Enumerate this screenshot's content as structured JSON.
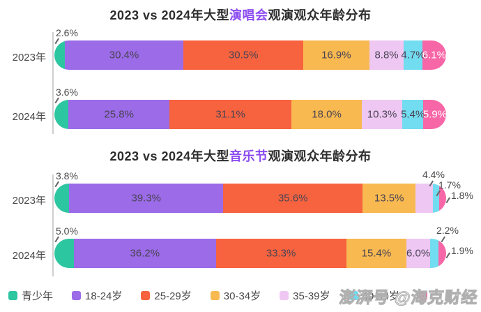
{
  "watermark": {
    "text": "澎湃号 @海克财经"
  },
  "colors": {
    "axis": "#cfcfcf",
    "title_text": "#2e2e2e",
    "title_highlight": "#8B4BF0",
    "green": "#2CC6A0",
    "purple": "#9B6BE8",
    "red": "#F7633F",
    "amber": "#F8B950",
    "lavender": "#EEC7F3",
    "cyan": "#72DCF0",
    "pink": "#F767A7"
  },
  "legend": {
    "items": [
      {
        "label": "青少年",
        "color": "#2CC6A0"
      },
      {
        "label": "18-24岁",
        "color": "#9B6BE8"
      },
      {
        "label": "25-29岁",
        "color": "#F7633F"
      },
      {
        "label": "30-34岁",
        "color": "#F8B950"
      },
      {
        "label": "35-39岁",
        "color": "#EEC7F3"
      },
      {
        "label": "40-44岁",
        "color": "#72DCF0"
      },
      {
        "label": "",
        "color": "#F767A7"
      }
    ]
  },
  "charts": [
    {
      "title": {
        "prefix": "2023 vs 2024年大型",
        "highlight": "演唱会",
        "suffix": "观演观众年龄分布"
      },
      "rows": [
        {
          "label": "2023年",
          "segments": [
            {
              "label": "2.6%",
              "value": 2.6,
              "color": "#2CC6A0",
              "placement": "above-start"
            },
            {
              "label": "30.4%",
              "value": 30.4,
              "color": "#9B6BE8",
              "placement": "inside"
            },
            {
              "label": "30.5%",
              "value": 30.5,
              "color": "#F7633F",
              "placement": "inside"
            },
            {
              "label": "16.9%",
              "value": 16.9,
              "color": "#F8B950",
              "placement": "inside"
            },
            {
              "label": "8.8%",
              "value": 8.8,
              "color": "#EEC7F3",
              "placement": "inside"
            },
            {
              "label": "4.7%",
              "value": 4.7,
              "color": "#72DCF0",
              "placement": "inside"
            },
            {
              "label": "6.1%",
              "value": 6.1,
              "color": "#F767A7",
              "placement": "inside",
              "label_color": "#ffffff"
            }
          ]
        },
        {
          "label": "2024年",
          "segments": [
            {
              "label": "3.6%",
              "value": 3.6,
              "color": "#2CC6A0",
              "placement": "above-start"
            },
            {
              "label": "25.8%",
              "value": 25.8,
              "color": "#9B6BE8",
              "placement": "inside"
            },
            {
              "label": "31.1%",
              "value": 31.1,
              "color": "#F7633F",
              "placement": "inside"
            },
            {
              "label": "18.0%",
              "value": 18.0,
              "color": "#F8B950",
              "placement": "inside"
            },
            {
              "label": "10.3%",
              "value": 10.3,
              "color": "#EEC7F3",
              "placement": "inside"
            },
            {
              "label": "5.4%",
              "value": 5.4,
              "color": "#72DCF0",
              "placement": "inside"
            },
            {
              "label": "5.9%",
              "value": 5.9,
              "color": "#F767A7",
              "placement": "inside",
              "label_color": "#ffffff"
            }
          ]
        }
      ]
    },
    {
      "title": {
        "prefix": "2023 vs 2024年大型",
        "highlight": "音乐节",
        "suffix": "观演观众年龄分布"
      },
      "rows": [
        {
          "label": "2023年",
          "segments": [
            {
              "label": "3.8%",
              "value": 3.8,
              "color": "#2CC6A0",
              "placement": "above-start"
            },
            {
              "label": "39.3%",
              "value": 39.3,
              "color": "#9B6BE8",
              "placement": "inside"
            },
            {
              "label": "35.6%",
              "value": 35.6,
              "color": "#F7633F",
              "placement": "inside"
            },
            {
              "label": "13.5%",
              "value": 13.5,
              "color": "#F8B950",
              "placement": "inside"
            },
            {
              "label": "4.4%",
              "value": 4.4,
              "color": "#EEC7F3",
              "placement": "co-top1"
            },
            {
              "label": "1.7%",
              "value": 1.7,
              "color": "#72DCF0",
              "placement": "co-mid"
            },
            {
              "label": "1.8%",
              "value": 1.8,
              "color": "#F767A7",
              "placement": "co-right"
            }
          ]
        },
        {
          "label": "2024年",
          "segments": [
            {
              "label": "5.0%",
              "value": 5.0,
              "color": "#2CC6A0",
              "placement": "above-start"
            },
            {
              "label": "36.2%",
              "value": 36.2,
              "color": "#9B6BE8",
              "placement": "inside"
            },
            {
              "label": "33.3%",
              "value": 33.3,
              "color": "#F7633F",
              "placement": "inside"
            },
            {
              "label": "15.4%",
              "value": 15.4,
              "color": "#F8B950",
              "placement": "inside"
            },
            {
              "label": "6.0%",
              "value": 6.0,
              "color": "#EEC7F3",
              "placement": "inside"
            },
            {
              "label": "2.2%",
              "value": 2.2,
              "color": "#72DCF0",
              "placement": "co-top2"
            },
            {
              "label": "1.9%",
              "value": 1.9,
              "color": "#F767A7",
              "placement": "co-right"
            }
          ]
        }
      ]
    }
  ],
  "chart_data": [
    {
      "type": "bar",
      "stacked": true,
      "orientation": "horizontal",
      "title": "2023 vs 2024年大型演唱会观演观众年龄分布",
      "categories": [
        "2023年",
        "2024年"
      ],
      "series": [
        {
          "name": "青少年",
          "values": [
            2.6,
            3.6
          ]
        },
        {
          "name": "18-24岁",
          "values": [
            30.4,
            25.8
          ]
        },
        {
          "name": "25-29岁",
          "values": [
            30.5,
            31.1
          ]
        },
        {
          "name": "30-34岁",
          "values": [
            16.9,
            18.0
          ]
        },
        {
          "name": "35-39岁",
          "values": [
            8.8,
            10.3
          ]
        },
        {
          "name": "40-44岁",
          "values": [
            4.7,
            5.4
          ]
        },
        {
          "name": "",
          "values": [
            6.1,
            5.9
          ]
        }
      ],
      "unit": "%",
      "xlim": [
        0,
        100
      ],
      "legend_position": "bottom",
      "grid": false
    },
    {
      "type": "bar",
      "stacked": true,
      "orientation": "horizontal",
      "title": "2023 vs 2024年大型音乐节观演观众年龄分布",
      "categories": [
        "2023年",
        "2024年"
      ],
      "series": [
        {
          "name": "青少年",
          "values": [
            3.8,
            5.0
          ]
        },
        {
          "name": "18-24岁",
          "values": [
            39.3,
            36.2
          ]
        },
        {
          "name": "25-29岁",
          "values": [
            35.6,
            33.3
          ]
        },
        {
          "name": "30-34岁",
          "values": [
            13.5,
            15.4
          ]
        },
        {
          "name": "35-39岁",
          "values": [
            4.4,
            6.0
          ]
        },
        {
          "name": "40-44岁",
          "values": [
            1.7,
            2.2
          ]
        },
        {
          "name": "",
          "values": [
            1.8,
            1.9
          ]
        }
      ],
      "unit": "%",
      "xlim": [
        0,
        100
      ],
      "legend_position": "bottom",
      "grid": false
    }
  ]
}
